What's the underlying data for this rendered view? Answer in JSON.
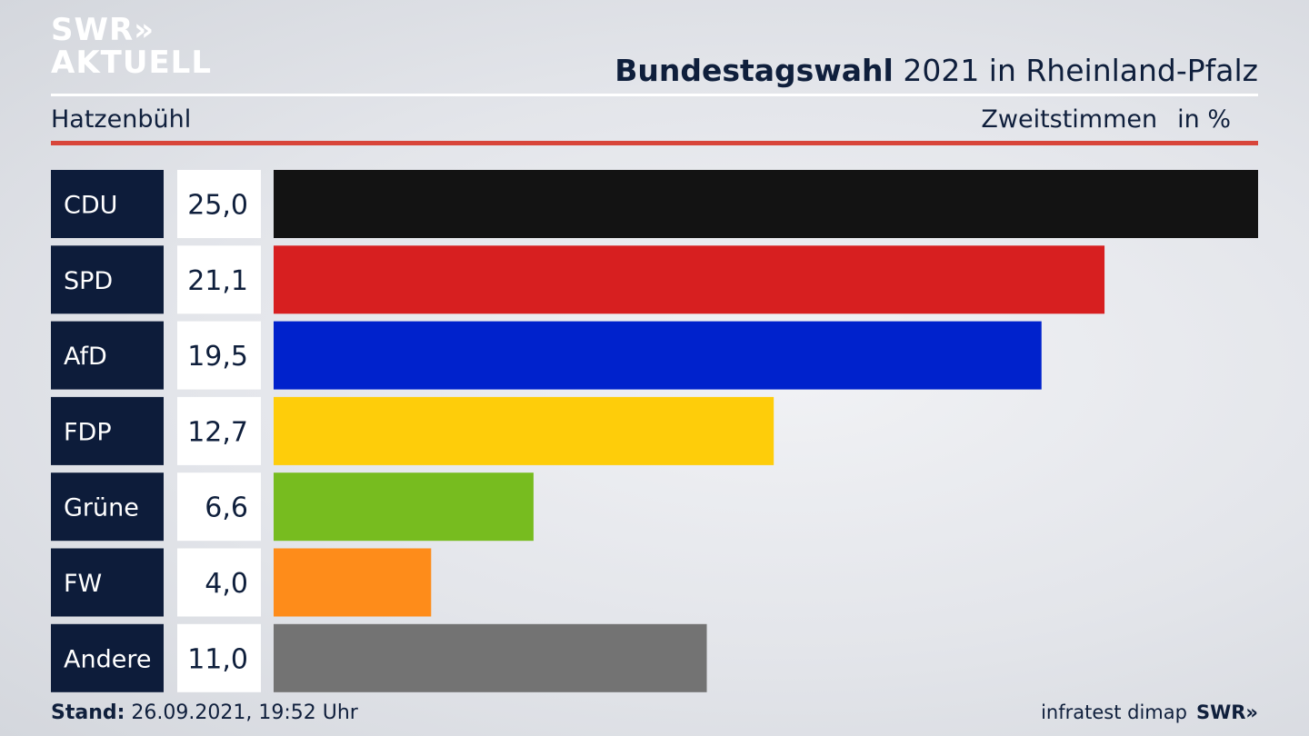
{
  "logo": {
    "line1": "SWR»",
    "line2": "AKTUELL"
  },
  "header": {
    "title_bold": "Bundestagswahl",
    "title_rest": " 2021 in Rheinland-Pfalz",
    "region": "Hatzenbühl",
    "measure": "Zweitstimmen",
    "unit": "in %"
  },
  "footer": {
    "stand_label": "Stand:",
    "stand_value": " 26.09.2021, 19:52 Uhr",
    "source": "infratest dimap",
    "brand": "SWR»"
  },
  "colors": {
    "label_box": "#0d1c3a",
    "value_box": "#ffffff",
    "text_dark": "#0f1f3c",
    "accent_red_rule": "#d8453a"
  },
  "chart_data": {
    "type": "bar",
    "orientation": "horizontal",
    "categories": [
      "CDU",
      "SPD",
      "AfD",
      "FDP",
      "Grüne",
      "FW",
      "Andere"
    ],
    "values": [
      25.0,
      21.1,
      19.5,
      12.7,
      6.6,
      4.0,
      11.0
    ],
    "value_labels": [
      "25,0",
      "21,1",
      "19,5",
      "12,7",
      "6,6",
      "4,0",
      "11,0"
    ],
    "bar_colors": [
      "#131313",
      "#d71f20",
      "#0022cc",
      "#fecd0a",
      "#77bc1f",
      "#fe8c1a",
      "#737373"
    ],
    "xlim": [
      0,
      25.0
    ]
  }
}
